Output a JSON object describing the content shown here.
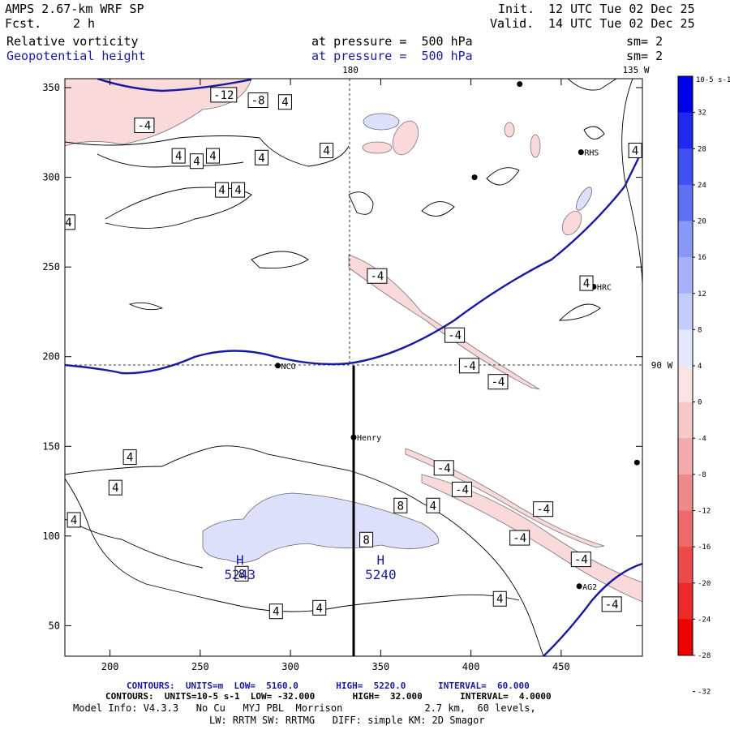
{
  "header": {
    "model": "AMPS 2.67-km WRF SP",
    "fcst_label": "Fcst.",
    "fcst_value": "2 h",
    "init_label": "Init.",
    "init_value": "12 UTC Tue 02 Dec 25",
    "valid_label": "Valid.",
    "valid_value": "14 UTC Tue 02 Dec 25",
    "field1_name": "Relative vorticity",
    "field1_pressure": "at pressure =  500 hPa",
    "field1_sm": "sm= 2",
    "field2_name": "Geopotential height",
    "field2_pressure": "at pressure =  500 hPa",
    "field2_sm": "sm= 2"
  },
  "colors": {
    "height_contour": "#1a1aa0",
    "vort_contour": "#000000",
    "pos_fill": "#f9d9d9",
    "neg_fill": "#dde0fa"
  },
  "chart_data": {
    "type": "contour-map",
    "x_range": [
      175,
      495
    ],
    "y_range": [
      33,
      355
    ],
    "x_ticks": [
      200,
      250,
      300,
      350,
      400,
      450
    ],
    "y_ticks": [
      50,
      100,
      150,
      200,
      250,
      300,
      350
    ],
    "longitude_labels": [
      "180",
      "135 W",
      "90 W"
    ],
    "stations": [
      {
        "name": "NCO",
        "x": 293,
        "y": 195
      },
      {
        "name": "Henry",
        "x": 335,
        "y": 155
      },
      {
        "name": "HRC",
        "x": 468,
        "y": 239
      },
      {
        "name": "RHS",
        "x": 461,
        "y": 314
      },
      {
        "name": "AG2",
        "x": 460,
        "y": 72
      }
    ],
    "markers": [
      {
        "x": 427,
        "y": 352
      },
      {
        "x": 402,
        "y": 300
      },
      {
        "x": 492,
        "y": 141
      }
    ],
    "cross_section_line": {
      "x": 335,
      "y_from": 33,
      "y_to": 195
    },
    "vorticity_labels": [
      {
        "text": "-12",
        "x": 263,
        "y": 346
      },
      {
        "text": "-8",
        "x": 282,
        "y": 343
      },
      {
        "text": "4",
        "x": 297,
        "y": 342
      },
      {
        "text": "-4",
        "x": 219,
        "y": 329
      },
      {
        "text": "4",
        "x": 238,
        "y": 312
      },
      {
        "text": "4",
        "x": 248,
        "y": 309
      },
      {
        "text": "4",
        "x": 257,
        "y": 312
      },
      {
        "text": "4",
        "x": 284,
        "y": 311
      },
      {
        "text": "4",
        "x": 320,
        "y": 315
      },
      {
        "text": "4",
        "x": 262,
        "y": 293
      },
      {
        "text": "4",
        "x": 271,
        "y": 293
      },
      {
        "text": "4",
        "x": 177,
        "y": 275
      },
      {
        "text": "4",
        "x": 491,
        "y": 315
      },
      {
        "text": "-4",
        "x": 348,
        "y": 245
      },
      {
        "text": "4",
        "x": 464,
        "y": 241
      },
      {
        "text": "-4",
        "x": 391,
        "y": 212
      },
      {
        "text": "-4",
        "x": 399,
        "y": 195
      },
      {
        "text": "-4",
        "x": 415,
        "y": 186
      },
      {
        "text": "4",
        "x": 211,
        "y": 144
      },
      {
        "text": "4",
        "x": 203,
        "y": 127
      },
      {
        "text": "4",
        "x": 180,
        "y": 109
      },
      {
        "text": "-4",
        "x": 385,
        "y": 138
      },
      {
        "text": "-4",
        "x": 395,
        "y": 126
      },
      {
        "text": "8",
        "x": 361,
        "y": 117
      },
      {
        "text": "4",
        "x": 379,
        "y": 117
      },
      {
        "text": "-4",
        "x": 440,
        "y": 115
      },
      {
        "text": "8",
        "x": 342,
        "y": 98
      },
      {
        "text": "-4",
        "x": 427,
        "y": 99
      },
      {
        "text": "8",
        "x": 273,
        "y": 79
      },
      {
        "text": "-4",
        "x": 461,
        "y": 87
      },
      {
        "text": "4",
        "x": 416,
        "y": 65
      },
      {
        "text": "-4",
        "x": 478,
        "y": 62
      },
      {
        "text": "4",
        "x": 292,
        "y": 58
      },
      {
        "text": "4",
        "x": 316,
        "y": 60
      }
    ],
    "height_extrema": [
      {
        "label": "H",
        "value": "5243",
        "x": 272,
        "y": 84
      },
      {
        "label": "H",
        "value": "5240",
        "x": 350,
        "y": 84
      }
    ],
    "colorbar": {
      "unit": "10-5 s-1",
      "ticks": [
        32,
        28,
        24,
        20,
        16,
        12,
        8,
        4,
        0,
        -4,
        -8,
        -12,
        -16,
        -20,
        -24,
        -28,
        -32
      ],
      "colors": [
        "#0000ee",
        "#2028f0",
        "#4050f3",
        "#6070f5",
        "#8898f8",
        "#a8b2fa",
        "#c4ccfc",
        "#e4e8fe",
        "#fae3e3",
        "#f6c8c8",
        "#f3aaaa",
        "#f08a8a",
        "#ee6a6a",
        "#ed4a4a",
        "#ec2a2a",
        "#ee0000"
      ]
    }
  },
  "footer": {
    "line1": "CONTOURS:  UNITS=m  LOW=  5160.0       HIGH=  5220.0      INTERVAL=  60.000",
    "line2": "CONTOURS:  UNITS=10-5 s-1  LOW= -32.000       HIGH=  32.000       INTERVAL=  4.0000",
    "line3": "Model Info: V4.3.3   No Cu   MYJ PBL  Morrison              2.7 km,  60 levels,",
    "line4": "LW: RRTM SW: RRTMG   DIFF: simple KM: 2D Smagor"
  }
}
